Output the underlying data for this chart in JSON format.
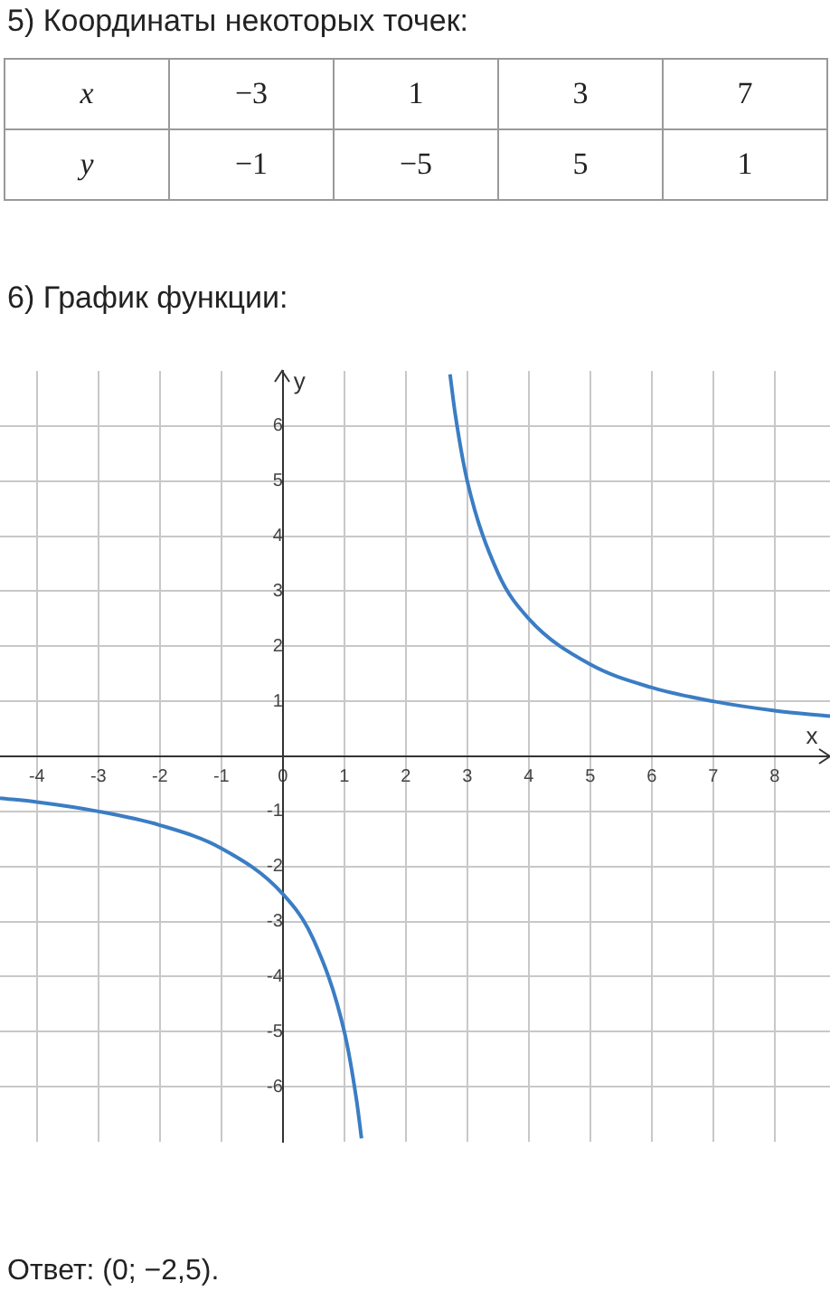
{
  "chart_data": {
    "type": "line",
    "title": "6) График функции:",
    "xlabel": "x",
    "ylabel": "y",
    "annotations": [
      "5) Координаты некоторых точек:",
      "x",
      "−3",
      "1",
      "3",
      "7",
      "y",
      "−1",
      "−5",
      "5",
      "1",
      "Ответ:  (0; −2,5)."
    ],
    "series": [
      {
        "color": "#3b7dc4",
        "x": [
          -4.6,
          -4,
          -3,
          -2,
          -1,
          0,
          0.5,
          1,
          1.2,
          1.28
        ],
        "values": [
          -0.76,
          -0.83,
          -1,
          -1.25,
          -1.67,
          -2.5,
          -3.33,
          -5,
          -6.25,
          -6.94
        ]
      },
      {
        "color": "#3b7dc4",
        "x": [
          2.72,
          2.8,
          3,
          3.5,
          4,
          5,
          6,
          7,
          8,
          8.9
        ],
        "values": [
          6.94,
          6.25,
          5,
          3.33,
          2.5,
          1.67,
          1.25,
          1,
          0.83,
          0.73
        ]
      }
    ],
    "xlim": [
      -4.6,
      8.9
    ],
    "ylim": [
      -7,
      7
    ],
    "xticks": [
      -4,
      -3,
      -2,
      -1,
      0,
      1,
      2,
      3,
      4,
      5,
      6,
      7,
      8
    ],
    "yticks": [
      -6,
      -5,
      -4,
      -3,
      -2,
      -1,
      1,
      2,
      3,
      4,
      5,
      6
    ],
    "grid": true,
    "legend": false,
    "marker": "none",
    "line_style": "solid"
  }
}
